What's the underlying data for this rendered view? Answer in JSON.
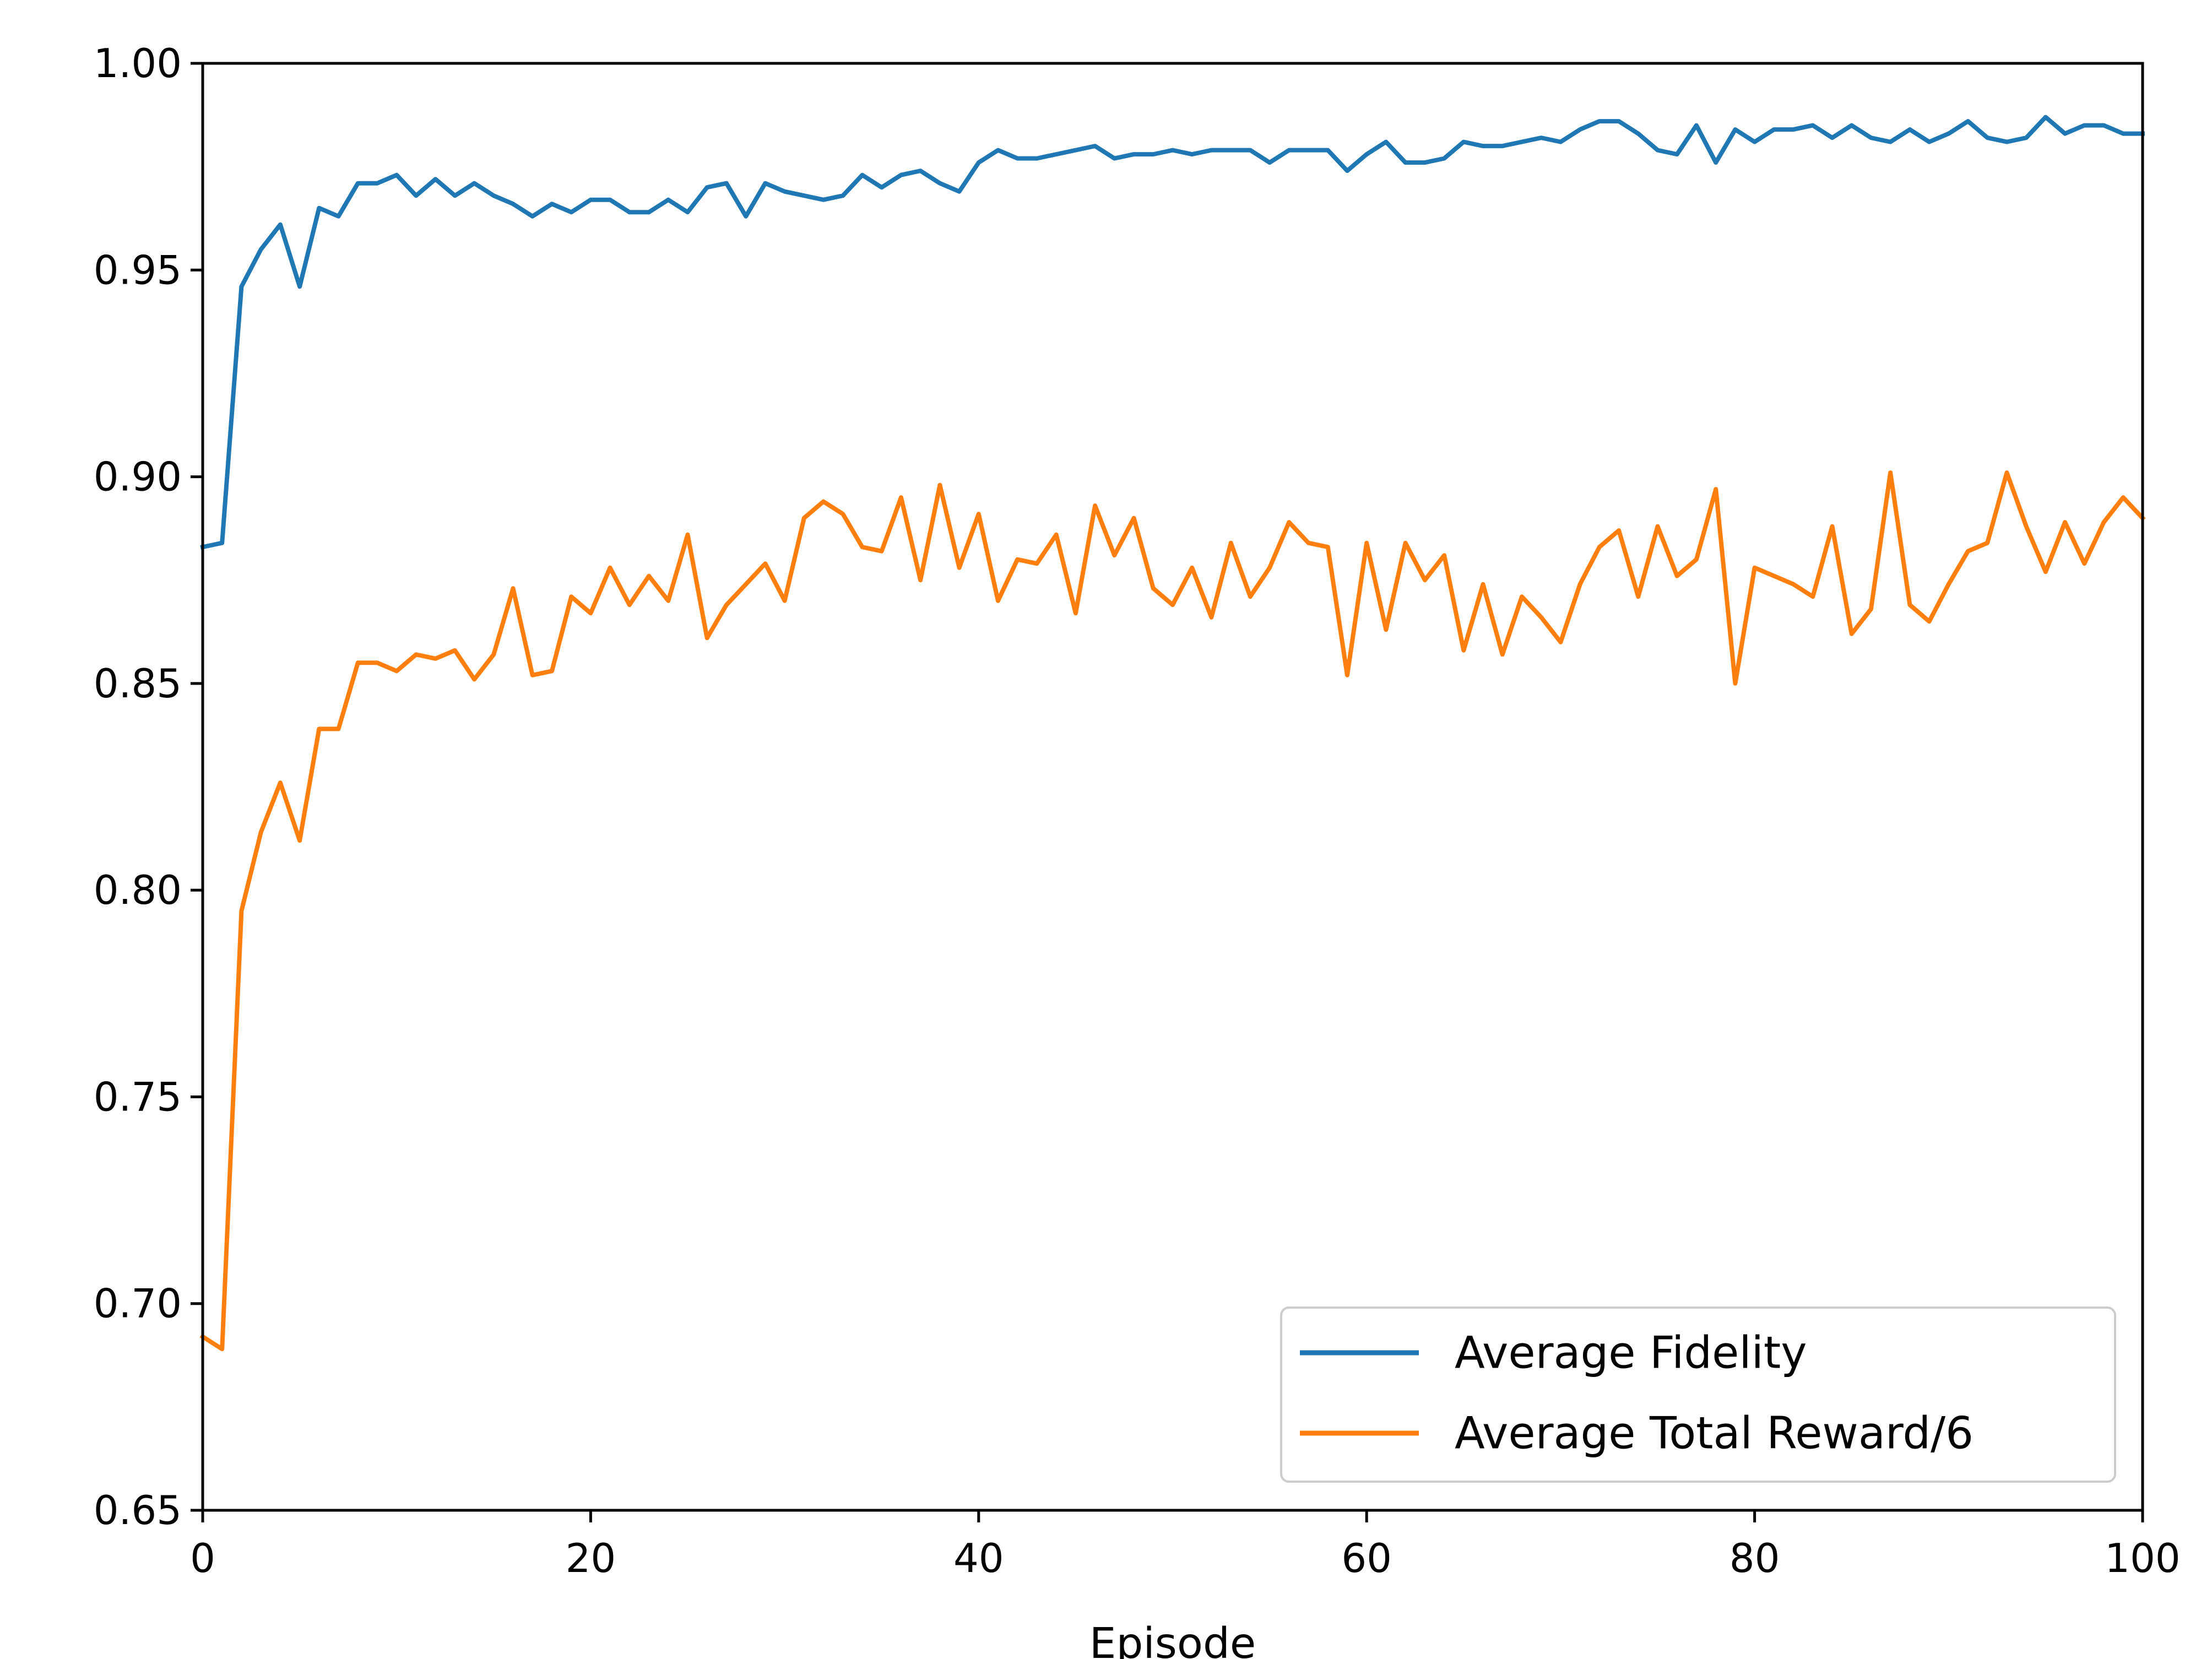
{
  "chart_data": {
    "type": "line",
    "title": "",
    "xlabel": "Episode",
    "ylabel": "",
    "xlim": [
      0,
      100
    ],
    "ylim": [
      0.65,
      1.0
    ],
    "grid": false,
    "legend_position": "lower-right",
    "x_ticks": [
      0,
      20,
      40,
      60,
      80,
      100
    ],
    "x_tick_labels": [
      "0",
      "20",
      "40",
      "60",
      "80",
      "100"
    ],
    "y_ticks": [
      0.65,
      0.7,
      0.75,
      0.8,
      0.85,
      0.9,
      0.95,
      1.0
    ],
    "y_tick_labels": [
      "0.65",
      "0.70",
      "0.75",
      "0.80",
      "0.85",
      "0.90",
      "0.95",
      "1.00"
    ],
    "series": [
      {
        "name": "Average Fidelity",
        "color": "#1f77b4",
        "x": [
          0,
          1,
          2,
          3,
          4,
          5,
          6,
          7,
          8,
          9,
          10,
          11,
          12,
          13,
          14,
          15,
          16,
          17,
          18,
          19,
          20,
          21,
          22,
          23,
          24,
          25,
          26,
          27,
          28,
          29,
          30,
          31,
          32,
          33,
          34,
          35,
          36,
          37,
          38,
          39,
          40,
          41,
          42,
          43,
          44,
          45,
          46,
          47,
          48,
          49,
          50,
          51,
          52,
          53,
          54,
          55,
          56,
          57,
          58,
          59,
          60,
          61,
          62,
          63,
          64,
          65,
          66,
          67,
          68,
          69,
          70,
          71,
          72,
          73,
          74,
          75,
          76,
          77,
          78,
          79,
          80,
          81,
          82,
          83,
          84,
          85,
          86,
          87,
          88,
          89,
          90,
          91,
          92,
          93,
          94,
          95,
          96,
          97,
          98,
          99,
          100
        ],
        "values": [
          0.883,
          0.884,
          0.946,
          0.955,
          0.961,
          0.946,
          0.965,
          0.963,
          0.971,
          0.971,
          0.973,
          0.968,
          0.972,
          0.968,
          0.971,
          0.968,
          0.966,
          0.963,
          0.966,
          0.964,
          0.967,
          0.967,
          0.964,
          0.964,
          0.967,
          0.964,
          0.97,
          0.971,
          0.963,
          0.971,
          0.969,
          0.968,
          0.967,
          0.968,
          0.973,
          0.97,
          0.973,
          0.974,
          0.971,
          0.969,
          0.976,
          0.979,
          0.977,
          0.977,
          0.978,
          0.979,
          0.98,
          0.977,
          0.978,
          0.978,
          0.979,
          0.978,
          0.979,
          0.979,
          0.979,
          0.976,
          0.979,
          0.979,
          0.979,
          0.974,
          0.978,
          0.981,
          0.976,
          0.976,
          0.977,
          0.981,
          0.98,
          0.98,
          0.981,
          0.982,
          0.981,
          0.984,
          0.986,
          0.986,
          0.983,
          0.979,
          0.978,
          0.985,
          0.976,
          0.984,
          0.981,
          0.984,
          0.984,
          0.985,
          0.982,
          0.985,
          0.982,
          0.981,
          0.984,
          0.981,
          0.983,
          0.986,
          0.982,
          0.981,
          0.982,
          0.987,
          0.983,
          0.985,
          0.985,
          0.983,
          0.983
        ]
      },
      {
        "name": "Average Total Reward/6",
        "color": "#ff7f0e",
        "x": [
          0,
          1,
          2,
          3,
          4,
          5,
          6,
          7,
          8,
          9,
          10,
          11,
          12,
          13,
          14,
          15,
          16,
          17,
          18,
          19,
          20,
          21,
          22,
          23,
          24,
          25,
          26,
          27,
          28,
          29,
          30,
          31,
          32,
          33,
          34,
          35,
          36,
          37,
          38,
          39,
          40,
          41,
          42,
          43,
          44,
          45,
          46,
          47,
          48,
          49,
          50,
          51,
          52,
          53,
          54,
          55,
          56,
          57,
          58,
          59,
          60,
          61,
          62,
          63,
          64,
          65,
          66,
          67,
          68,
          69,
          70,
          71,
          72,
          73,
          74,
          75,
          76,
          77,
          78,
          79,
          80,
          81,
          82,
          83,
          84,
          85,
          86,
          87,
          88,
          89,
          90,
          91,
          92,
          93,
          94,
          95,
          96,
          97,
          98,
          99,
          100
        ],
        "values": [
          0.692,
          0.689,
          0.795,
          0.814,
          0.826,
          0.812,
          0.839,
          0.839,
          0.855,
          0.855,
          0.853,
          0.857,
          0.856,
          0.858,
          0.851,
          0.857,
          0.873,
          0.852,
          0.853,
          0.871,
          0.867,
          0.878,
          0.869,
          0.876,
          0.87,
          0.886,
          0.861,
          0.869,
          0.874,
          0.879,
          0.87,
          0.89,
          0.894,
          0.891,
          0.883,
          0.882,
          0.895,
          0.875,
          0.898,
          0.878,
          0.891,
          0.87,
          0.88,
          0.879,
          0.886,
          0.867,
          0.893,
          0.881,
          0.89,
          0.873,
          0.869,
          0.878,
          0.866,
          0.884,
          0.871,
          0.878,
          0.889,
          0.884,
          0.883,
          0.852,
          0.884,
          0.863,
          0.884,
          0.875,
          0.881,
          0.858,
          0.874,
          0.857,
          0.871,
          0.866,
          0.86,
          0.874,
          0.883,
          0.887,
          0.871,
          0.888,
          0.876,
          0.88,
          0.897,
          0.85,
          0.878,
          0.876,
          0.874,
          0.871,
          0.888,
          0.862,
          0.868,
          0.901,
          0.869,
          0.865,
          0.874,
          0.882,
          0.884,
          0.901,
          0.888,
          0.877,
          0.889,
          0.879,
          0.889,
          0.895,
          0.89
        ]
      }
    ]
  }
}
